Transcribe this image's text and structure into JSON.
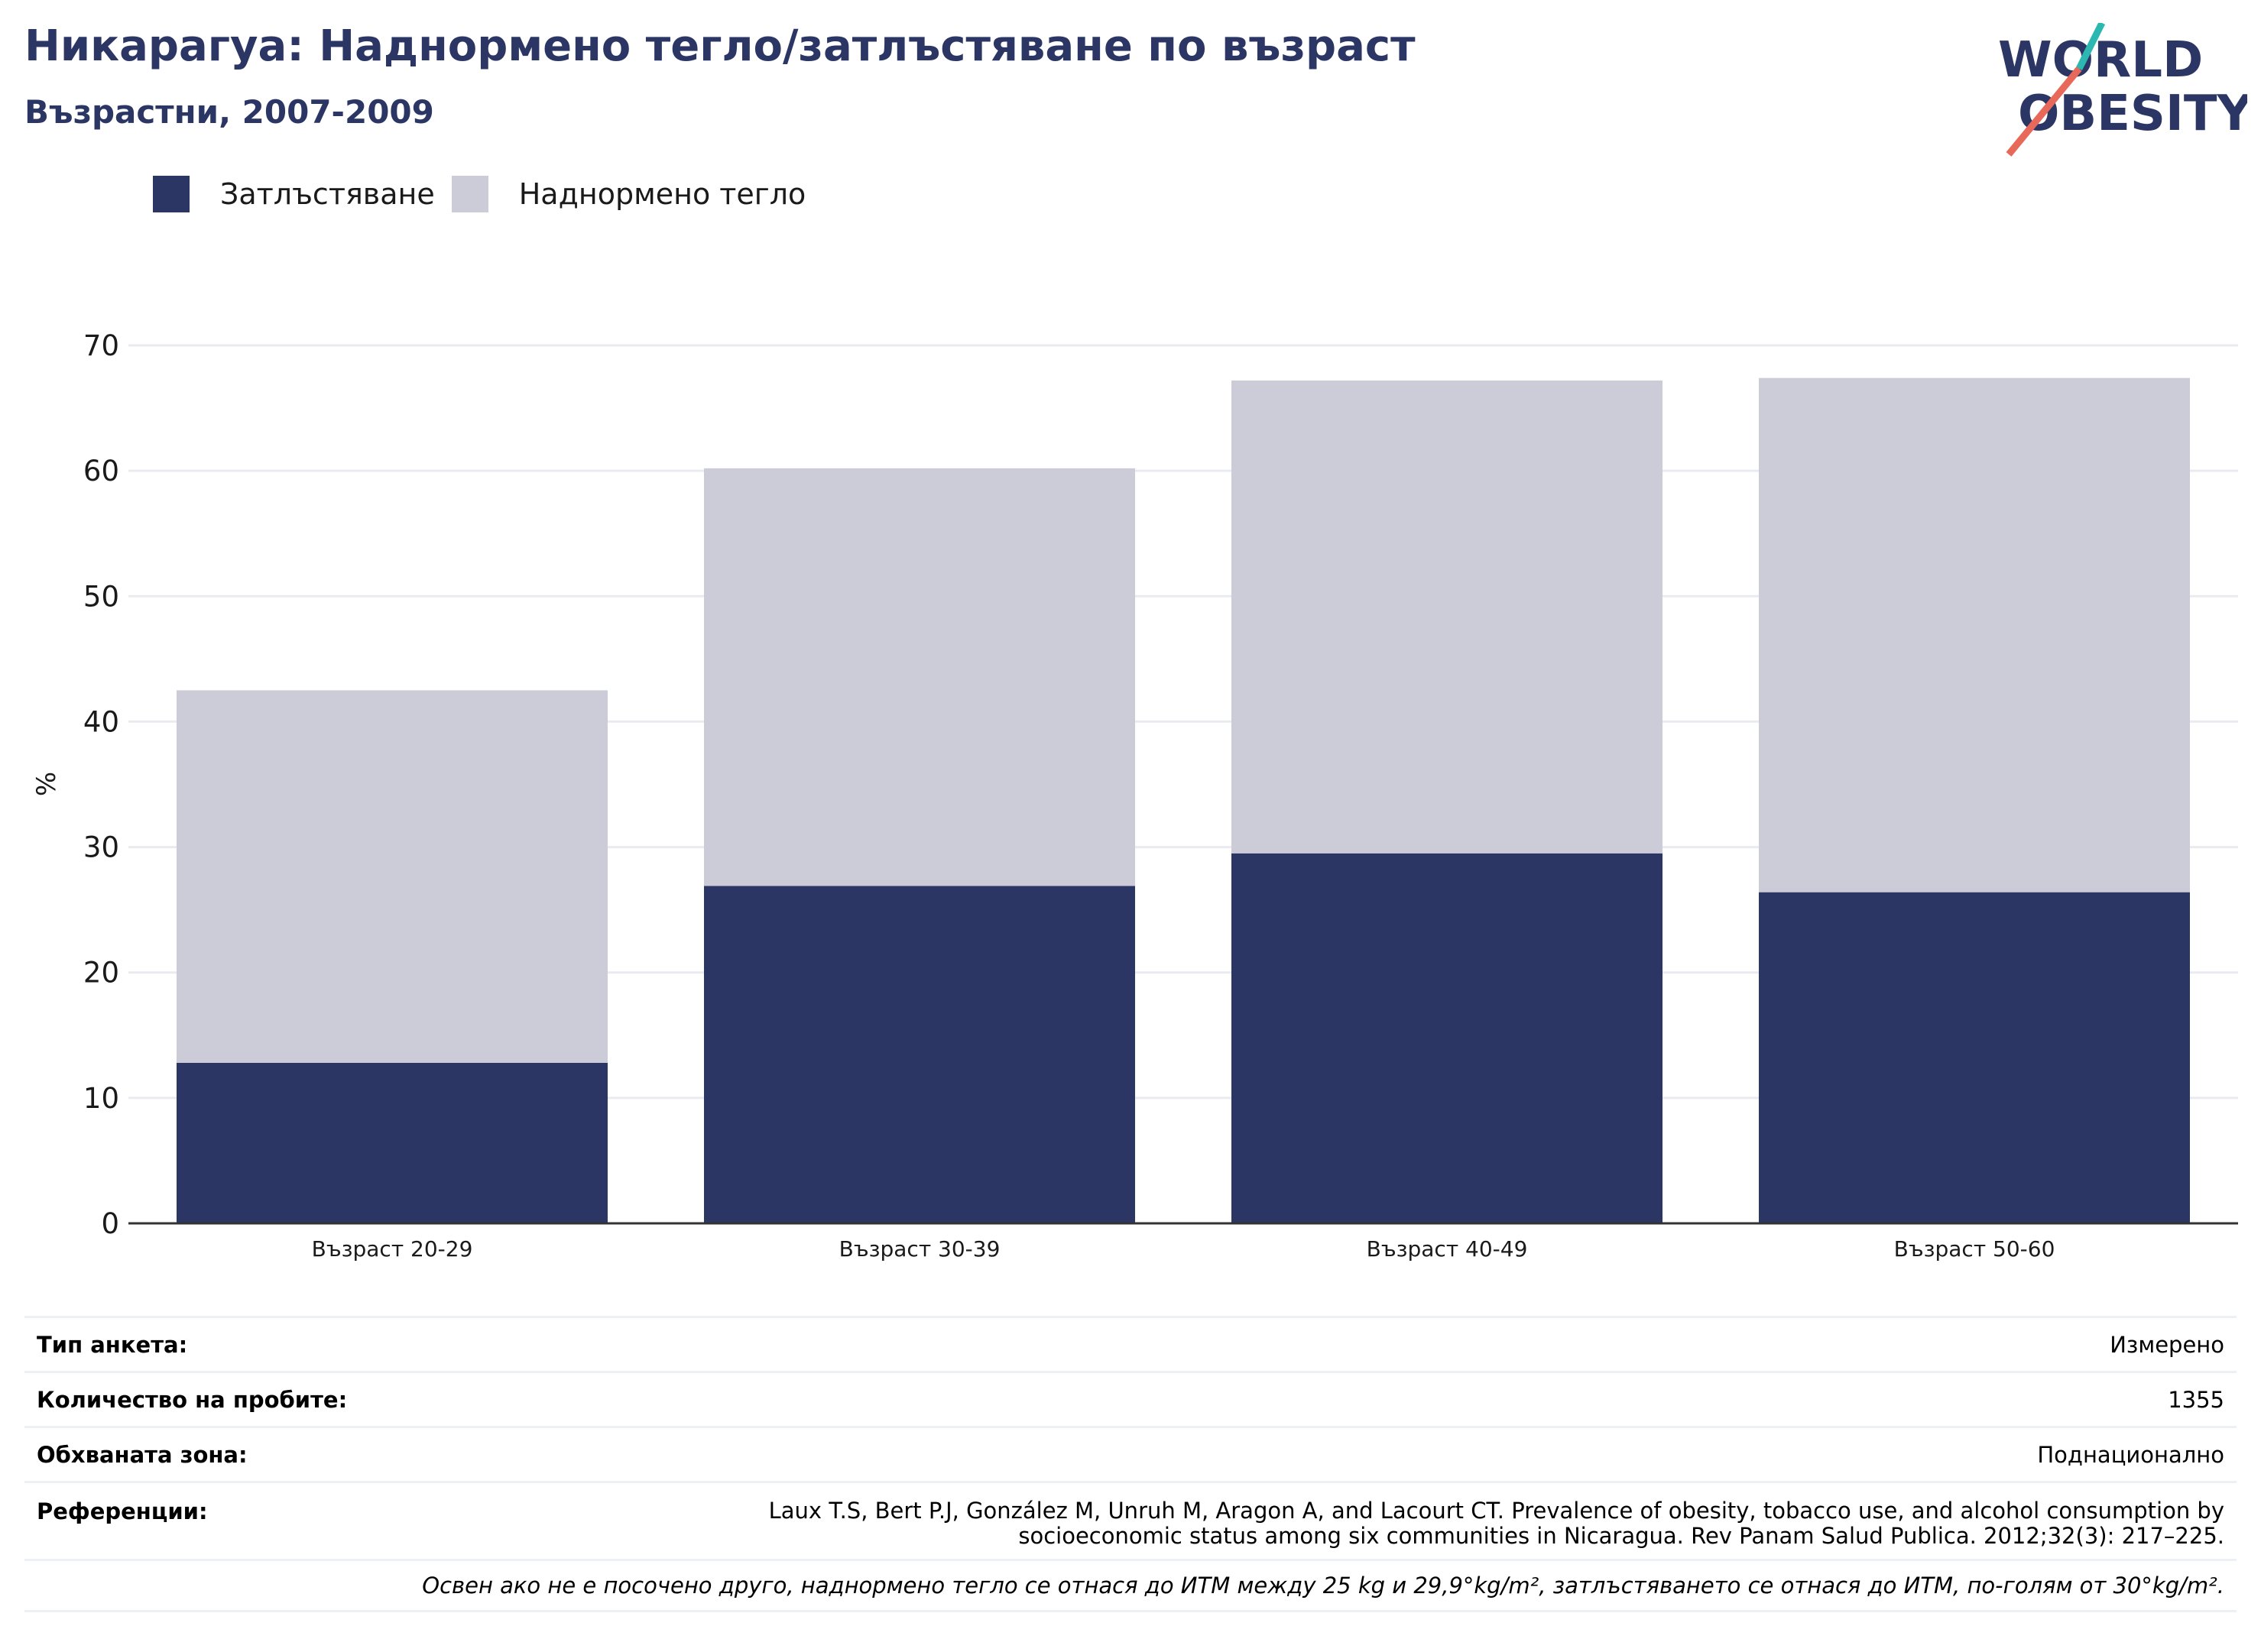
{
  "header": {
    "title": "Никарагуа: Наднормено тегло/затлъстяване по възраст",
    "subtitle": "Възрастни, 2007-2009"
  },
  "logo": {
    "line1": "WORLD",
    "line2": "OBESITY"
  },
  "colors": {
    "obesity": "#2b3665",
    "overweight": "#cbccd8",
    "title": "#2b3665",
    "logo_teal": "#2cb8b0",
    "logo_coral": "#e8685a"
  },
  "chart_data": {
    "type": "bar",
    "stacked": true,
    "categories": [
      "Възраст 20-29",
      "Възраст 30-39",
      "Възраст 40-49",
      "Възраст 50-60"
    ],
    "series": [
      {
        "name": "Затлъстяване",
        "values": [
          12.8,
          26.9,
          29.5,
          26.4
        ]
      },
      {
        "name": "Наднормено тегло",
        "values": [
          29.7,
          33.3,
          37.7,
          41.0
        ]
      }
    ],
    "ylabel": "%",
    "ylim": [
      0,
      70
    ],
    "yticks": [
      0,
      10,
      20,
      30,
      40,
      50,
      60,
      70
    ],
    "grid": true,
    "legend": "top-left"
  },
  "info": {
    "rows": [
      {
        "key": "Тип анкета:",
        "value": "Измерено"
      },
      {
        "key": "Количество на пробите:",
        "value": "1355"
      },
      {
        "key": "Обхваната зона:",
        "value": "Поднационално"
      }
    ],
    "references_key": "Референции:",
    "references_line1": "Laux T.S, Bert P.J, González M, Unruh M, Aragon A, and Lacourt CT. Prevalence of obesity, tobacco use, and alcohol consumption by",
    "references_line2": "socioeconomic status among six communities in Nicaragua. Rev Panam Salud Publica. 2012;32(3): 217–225.",
    "note": "Освен ако не е посочено друго, наднормено тегло се отнася до ИТМ между 25 kg и 29,9°kg/m², затлъстяването се отнася до ИТМ, по-голям от 30°kg/m²."
  }
}
